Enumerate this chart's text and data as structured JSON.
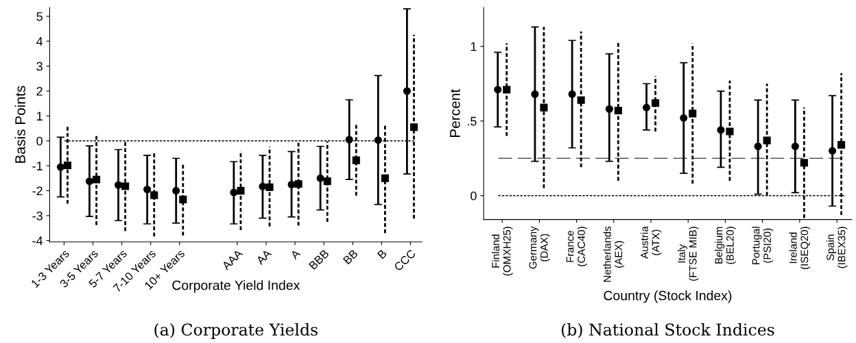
{
  "chart_data": [
    {
      "type": "scatter",
      "xlabel": "Corporate Yield Index",
      "ylabel": "Basis Points",
      "annotations": [
        "(a) Corporate Yields"
      ],
      "categories": [
        "1-3 Years",
        "3-5 Years",
        "5-7 Years",
        "7-10 Years",
        "10+ Years",
        null,
        "AAA",
        "AA",
        "A",
        "BBB",
        "BB",
        "B",
        "CCC"
      ],
      "ylim": [
        -4.05,
        5.35
      ],
      "yticks": [
        -4,
        -3,
        -2,
        -1,
        0,
        1,
        2,
        3,
        4,
        5
      ],
      "grid": false,
      "legend": false,
      "series": [
        {
          "color": "#000000",
          "marker": "circle",
          "line_style": "solid",
          "values": [
            -1.05,
            -1.62,
            -1.77,
            -1.95,
            -2.0,
            null,
            -2.07,
            -1.83,
            -1.75,
            -1.5,
            0.05,
            0.03,
            2.0
          ],
          "errors": [
            [
              -2.25,
              0.15
            ],
            [
              -3.03,
              -0.2
            ],
            [
              -3.2,
              -0.35
            ],
            [
              -3.33,
              -0.58
            ],
            [
              -3.3,
              -0.7
            ],
            null,
            [
              -3.33,
              -0.83
            ],
            [
              -3.1,
              -0.58
            ],
            [
              -3.05,
              -0.43
            ],
            [
              -2.77,
              -0.22
            ],
            [
              -1.55,
              1.65
            ],
            [
              -2.55,
              2.62
            ],
            [
              -1.33,
              5.3
            ]
          ]
        },
        {
          "color": "#000000",
          "marker": "square",
          "line_style": "dotted",
          "values": [
            -0.98,
            -1.55,
            -1.82,
            -2.18,
            -2.35,
            null,
            -2.0,
            -1.86,
            -1.73,
            -1.62,
            -0.78,
            -1.5,
            0.55
          ],
          "errors": [
            [
              -2.52,
              0.57
            ],
            [
              -3.38,
              0.28
            ],
            [
              -3.62,
              0.0
            ],
            [
              -3.83,
              -0.5
            ],
            [
              -3.8,
              -0.9
            ],
            null,
            [
              -3.58,
              -0.4
            ],
            [
              -3.43,
              -0.23
            ],
            [
              -3.4,
              -0.03
            ],
            [
              -3.25,
              -0.02
            ],
            [
              -2.2,
              0.65
            ],
            [
              -3.7,
              0.65
            ],
            [
              -3.12,
              4.25
            ]
          ]
        }
      ],
      "ref_lines": [
        {
          "axis": "y",
          "value": 0,
          "color": "#000000",
          "line_style": "dotted"
        }
      ]
    },
    {
      "type": "scatter",
      "xlabel": "Country (Stock Index)",
      "ylabel": "Percent",
      "annotations": [
        "(b) National Stock Indices"
      ],
      "categories": [
        "Finland\n(OMXH25)",
        "Germany\n(DAX)",
        "France\n(CAC40)",
        "Netherlands\n(AEX)",
        "Austria\n(ATX)",
        "Italy\n(FTSE MIB)",
        "Belgium\n(BEL20)",
        "Portugal\n(PSI20)",
        "Ireland\n(ISEQ20)",
        "Spain\n(IBEX35)"
      ],
      "ylim": [
        -0.16,
        1.26
      ],
      "yticks": [
        0,
        {
          "value": 0.5,
          "label": ".5"
        },
        1
      ],
      "grid": false,
      "legend": false,
      "series": [
        {
          "color": "#000000",
          "marker": "circle",
          "line_style": "solid",
          "values": [
            0.71,
            0.68,
            0.68,
            0.58,
            0.59,
            0.52,
            0.44,
            0.33,
            0.33,
            0.3
          ],
          "errors": [
            [
              0.46,
              0.96
            ],
            [
              0.23,
              1.13
            ],
            [
              0.32,
              1.04
            ],
            [
              0.23,
              0.95
            ],
            [
              0.44,
              0.75
            ],
            [
              0.15,
              0.89
            ],
            [
              0.19,
              0.7
            ],
            [
              0.01,
              0.64
            ],
            [
              0.02,
              0.64
            ],
            [
              -0.07,
              0.67
            ]
          ]
        },
        {
          "color": "#000000",
          "marker": "square",
          "line_style": "dotted",
          "values": [
            0.71,
            0.59,
            0.64,
            0.57,
            0.62,
            0.55,
            0.43,
            0.37,
            0.22,
            0.34
          ],
          "errors": [
            [
              0.4,
              1.02
            ],
            [
              0.05,
              1.13
            ],
            [
              0.19,
              1.1
            ],
            [
              0.1,
              1.03
            ],
            [
              0.43,
              0.8
            ],
            [
              0.08,
              1.02
            ],
            [
              0.1,
              0.77
            ],
            [
              0.0,
              0.75
            ],
            [
              -0.15,
              0.59
            ],
            [
              -0.13,
              0.82
            ]
          ]
        }
      ],
      "ref_lines": [
        {
          "axis": "y",
          "value": 0,
          "color": "#000000",
          "line_style": "dotted"
        },
        {
          "axis": "y",
          "value": 0.25,
          "color": "#555555",
          "line_style": "longdash"
        }
      ]
    }
  ]
}
